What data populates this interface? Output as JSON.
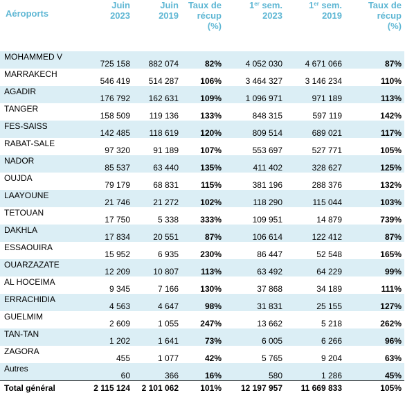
{
  "headers": {
    "airports": "Aéroports",
    "june2023": [
      "Juin",
      "2023"
    ],
    "june2019": [
      "Juin",
      "2019"
    ],
    "recovery": [
      "Taux de",
      "récup",
      "(%)"
    ],
    "h1_2023": [
      "1",
      "er",
      " sem.",
      "2023"
    ],
    "h1_2019": [
      "1",
      "er",
      " sem.",
      "2019"
    ],
    "recovery2": [
      "Taux de",
      "récup",
      "(%)"
    ]
  },
  "rows": [
    {
      "name": "MOHAMMED V",
      "jun23": "725 158",
      "jun19": "882 074",
      "rec": "82%",
      "s23": "4 052 030",
      "s19": "4 671 066",
      "rec2": "87%"
    },
    {
      "name": "MARRAKECH",
      "jun23": "546 419",
      "jun19": "514 287",
      "rec": "106%",
      "s23": "3 464 327",
      "s19": "3 146 234",
      "rec2": "110%"
    },
    {
      "name": "AGADIR",
      "jun23": "176 792",
      "jun19": "162 631",
      "rec": "109%",
      "s23": "1 096 971",
      "s19": "971 189",
      "rec2": "113%"
    },
    {
      "name": "TANGER",
      "jun23": "158 509",
      "jun19": "119 136",
      "rec": "133%",
      "s23": "848 315",
      "s19": "597 119",
      "rec2": "142%"
    },
    {
      "name": "FES-SAISS",
      "jun23": "142 485",
      "jun19": "118 619",
      "rec": "120%",
      "s23": "809 514",
      "s19": "689 021",
      "rec2": "117%"
    },
    {
      "name": "RABAT-SALE",
      "jun23": "97 320",
      "jun19": "91 189",
      "rec": "107%",
      "s23": "553 697",
      "s19": "527 771",
      "rec2": "105%"
    },
    {
      "name": "NADOR",
      "jun23": "85 537",
      "jun19": "63 440",
      "rec": "135%",
      "s23": "411 402",
      "s19": "328 627",
      "rec2": "125%"
    },
    {
      "name": "OUJDA",
      "jun23": "79 179",
      "jun19": "68 831",
      "rec": "115%",
      "s23": "381 196",
      "s19": "288 376",
      "rec2": "132%"
    },
    {
      "name": "LAAYOUNE",
      "jun23": "21 746",
      "jun19": "21 272",
      "rec": "102%",
      "s23": "118 290",
      "s19": "115 044",
      "rec2": "103%"
    },
    {
      "name": "TETOUAN",
      "jun23": "17 750",
      "jun19": "5 338",
      "rec": "333%",
      "s23": "109 951",
      "s19": "14 879",
      "rec2": "739%"
    },
    {
      "name": "DAKHLA",
      "jun23": "17 834",
      "jun19": "20 551",
      "rec": "87%",
      "s23": "106 614",
      "s19": "122 412",
      "rec2": "87%"
    },
    {
      "name": "ESSAOUIRA",
      "jun23": "15 952",
      "jun19": "6 935",
      "rec": "230%",
      "s23": "86 447",
      "s19": "52 548",
      "rec2": "165%"
    },
    {
      "name": "OUARZAZATE",
      "jun23": "12 209",
      "jun19": "10 807",
      "rec": "113%",
      "s23": "63 492",
      "s19": "64 229",
      "rec2": "99%"
    },
    {
      "name": "AL HOCEIMA",
      "jun23": "9 345",
      "jun19": "7 166",
      "rec": "130%",
      "s23": "37 868",
      "s19": "34 189",
      "rec2": "111%"
    },
    {
      "name": "ERRACHIDIA",
      "jun23": "4 563",
      "jun19": "4 647",
      "rec": "98%",
      "s23": "31 831",
      "s19": "25 155",
      "rec2": "127%"
    },
    {
      "name": "GUELMIM",
      "jun23": "2 609",
      "jun19": "1 055",
      "rec": "247%",
      "s23": "13 662",
      "s19": "5 218",
      "rec2": "262%"
    },
    {
      "name": "TAN-TAN",
      "jun23": "1 202",
      "jun19": "1 641",
      "rec": "73%",
      "s23": "6 005",
      "s19": "6 266",
      "rec2": "96%"
    },
    {
      "name": "ZAGORA",
      "jun23": "455",
      "jun19": "1 077",
      "rec": "42%",
      "s23": "5 765",
      "s19": "9 204",
      "rec2": "63%"
    },
    {
      "name": "Autres",
      "jun23": "60",
      "jun19": "366",
      "rec": "16%",
      "s23": "580",
      "s19": "1 286",
      "rec2": "45%"
    }
  ],
  "total": {
    "name": "Total général",
    "jun23": "2 115 124",
    "jun19": "2 101 062",
    "rec": "101%",
    "s23": "12 197 957",
    "s19": "11 669 833",
    "rec2": "105%"
  },
  "colors": {
    "header_text": "#5fb7d4",
    "row_shade": "#dbeef5"
  }
}
